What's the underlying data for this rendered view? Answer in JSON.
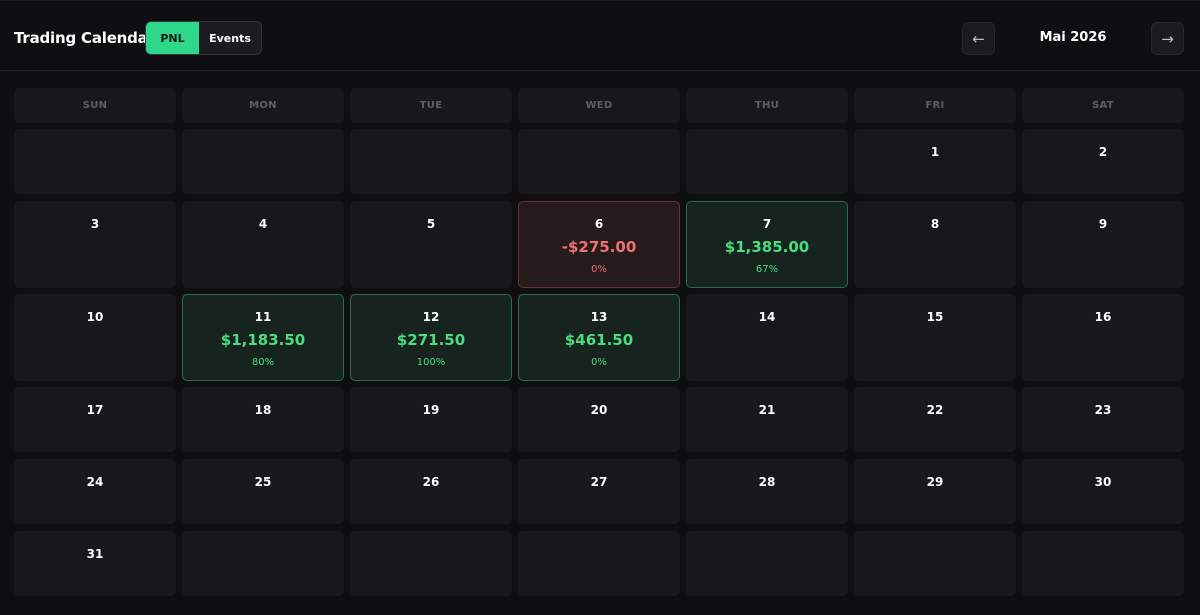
{
  "header": {
    "title": "Trading Calendar",
    "toggle": {
      "pnl_label": "PNL",
      "events_label": "Events",
      "active": "PNL"
    },
    "prev_label": "←",
    "next_label": "→",
    "month": "Mai 2026"
  },
  "colors": {
    "accent": "#2fd78a",
    "profit": "#4ade80",
    "loss": "#f07171",
    "background": "#0f0f12",
    "cell": "#18181c"
  },
  "weekdays": [
    "SUN",
    "MON",
    "TUE",
    "WED",
    "THU",
    "FRI",
    "SAT"
  ],
  "weeks": [
    [
      {
        "day": ""
      },
      {
        "day": ""
      },
      {
        "day": ""
      },
      {
        "day": ""
      },
      {
        "day": ""
      },
      {
        "day": "1"
      },
      {
        "day": "2"
      }
    ],
    [
      {
        "day": "3"
      },
      {
        "day": "4"
      },
      {
        "day": "5"
      },
      {
        "day": "6",
        "pnl": "-$275.00",
        "pct": "0%",
        "status": "loss"
      },
      {
        "day": "7",
        "pnl": "$1,385.00",
        "pct": "67%",
        "status": "win"
      },
      {
        "day": "8"
      },
      {
        "day": "9"
      }
    ],
    [
      {
        "day": "10"
      },
      {
        "day": "11",
        "pnl": "$1,183.50",
        "pct": "80%",
        "status": "win"
      },
      {
        "day": "12",
        "pnl": "$271.50",
        "pct": "100%",
        "status": "win"
      },
      {
        "day": "13",
        "pnl": "$461.50",
        "pct": "0%",
        "status": "win"
      },
      {
        "day": "14"
      },
      {
        "day": "15"
      },
      {
        "day": "16"
      }
    ],
    [
      {
        "day": "17"
      },
      {
        "day": "18"
      },
      {
        "day": "19"
      },
      {
        "day": "20"
      },
      {
        "day": "21"
      },
      {
        "day": "22"
      },
      {
        "day": "23"
      }
    ],
    [
      {
        "day": "24"
      },
      {
        "day": "25"
      },
      {
        "day": "26"
      },
      {
        "day": "27"
      },
      {
        "day": "28"
      },
      {
        "day": "29"
      },
      {
        "day": "30"
      }
    ],
    [
      {
        "day": "31"
      },
      {
        "day": ""
      },
      {
        "day": ""
      },
      {
        "day": ""
      },
      {
        "day": ""
      },
      {
        "day": ""
      },
      {
        "day": ""
      }
    ]
  ]
}
